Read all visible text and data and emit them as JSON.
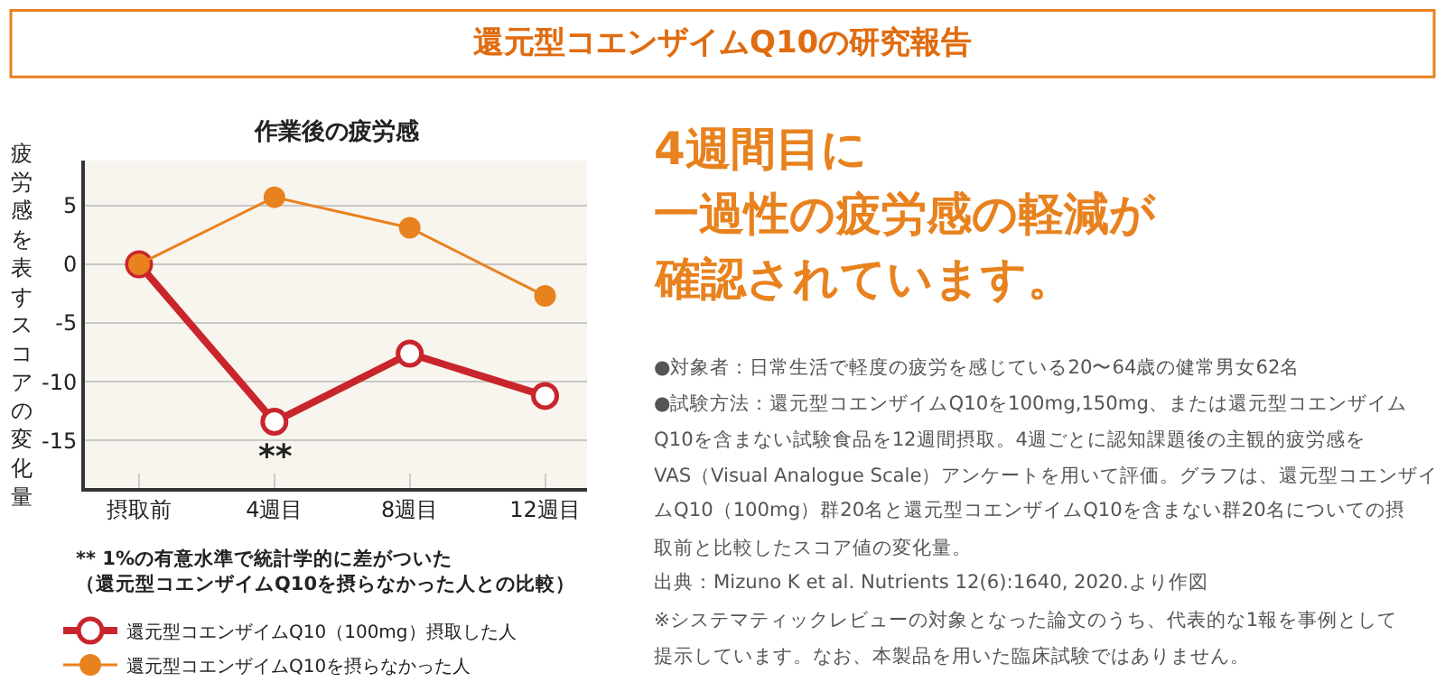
{
  "chart_data": {
    "type": "line",
    "title": "還元型コエンザイムQ10の研究報告",
    "subtitle": "作業後の疲労感",
    "ylabel": "疲労感を表すスコアの変化量",
    "categories": [
      "摂取前",
      "4週目",
      "8週目",
      "12週目"
    ],
    "series": [
      {
        "name": "還元型コエンザイムQ10（100mg）摂取した人",
        "color": "#c9252c",
        "values": [
          0,
          -13.4,
          -7.6,
          -11.2
        ]
      },
      {
        "name": "還元型コエンザイムQ10を摂らなかった人",
        "color": "#e8821e",
        "values": [
          0,
          5.7,
          3.1,
          -2.7
        ]
      }
    ],
    "ylim": [
      -19,
      8.8
    ],
    "yticks": [
      -15,
      -10,
      -5,
      0,
      5
    ],
    "grid": "y",
    "legend": "bottom left",
    "marker": "circle",
    "line_style": "solid",
    "annotations": [
      "4週間目に",
      "一過性の疲労感の軽減が",
      "確認されています。",
      "●対象者：日常生活で軽度の疲労を感じている20〜64歳の健常男女62名",
      "●試験方法：還元型コエンザイムQ10を100mg,150mg、または還元型コエンザイム",
      "Q10を含まない試験食品を12週間摂取。4週ごとに認知課題後の主観的疲労感を",
      "VAS（Visual Analogue Scale）アンケートを用いて評価。グラフは、還元型コエンザイ",
      "ムQ10（100mg）群20名と還元型コエンザイムQ10を含まない群20名についての摂",
      "取前と比較したスコア値の変化量。",
      "出典：Mizuno K et al. Nutrients 12(6):1640, 2020.より作図",
      "※システマティックレビューの対象となった論文のうち、代表的な1報を事例として",
      "提示しています。なお、本製品を用いた臨床試験ではありません。",
      "** 1%の有意水準で統計学的に差がついた",
      "（還元型コエンザイムQ10を摂らなかった人との比較）",
      "**"
    ]
  }
}
